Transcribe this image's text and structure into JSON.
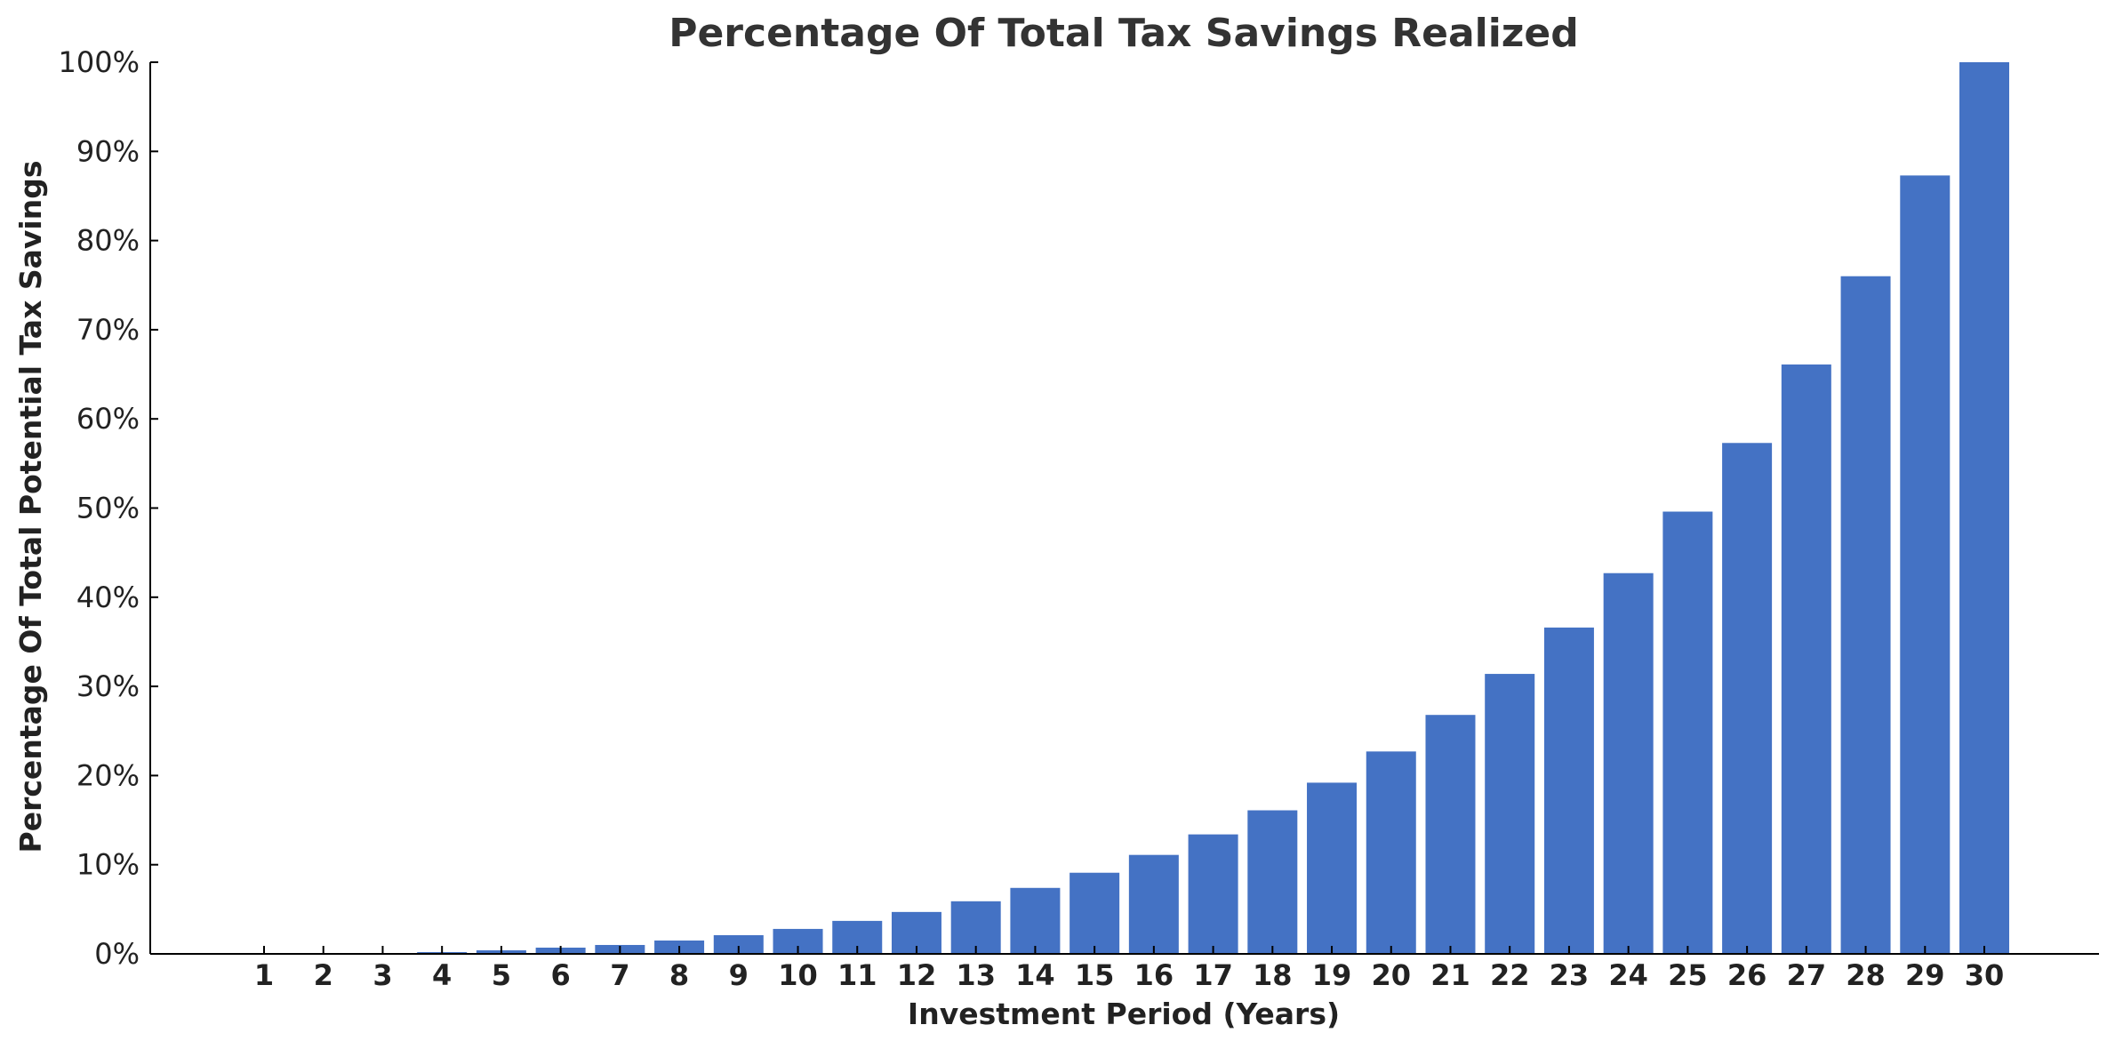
{
  "chart_data": {
    "type": "bar",
    "title": "Percentage Of Total Tax Savings Realized",
    "xlabel": "Investment Period (Years)",
    "ylabel": "Percentage Of Total Potential Tax Savings",
    "categories": [
      "1",
      "2",
      "3",
      "4",
      "5",
      "6",
      "7",
      "8",
      "9",
      "10",
      "11",
      "12",
      "13",
      "14",
      "15",
      "16",
      "17",
      "18",
      "19",
      "20",
      "21",
      "22",
      "23",
      "24",
      "25",
      "26",
      "27",
      "28",
      "29",
      "30"
    ],
    "values": [
      0,
      0,
      0,
      0.2,
      0.4,
      0.7,
      1.0,
      1.5,
      2.1,
      2.8,
      3.7,
      4.7,
      5.9,
      7.4,
      9.1,
      11.1,
      13.4,
      16.1,
      19.2,
      22.7,
      26.8,
      31.4,
      36.6,
      42.7,
      49.6,
      57.3,
      66.1,
      76.0,
      87.3,
      100.0
    ],
    "ylim": [
      0,
      100
    ],
    "yticks": [
      "0%",
      "10%",
      "20%",
      "30%",
      "40%",
      "50%",
      "60%",
      "70%",
      "80%",
      "90%",
      "100%"
    ],
    "grid": false,
    "bar_color": "#4472C4"
  }
}
